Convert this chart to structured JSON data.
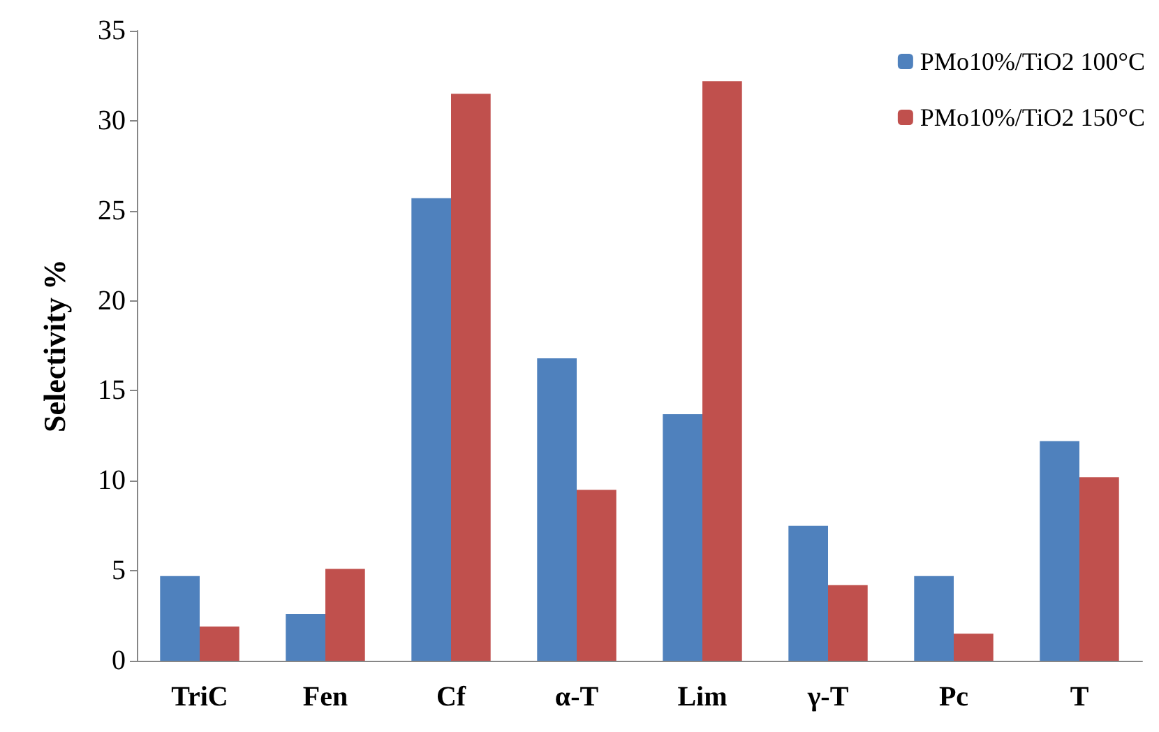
{
  "chart_data": {
    "type": "bar",
    "ylabel": "Selectivity %",
    "categories": [
      "TriC",
      "Fen",
      "Cf",
      "α-T",
      "Lim",
      "γ-T",
      "Pc",
      "T"
    ],
    "series": [
      {
        "name": "PMo10%/TiO2 100°C",
        "color": "#4f81bd",
        "values": [
          4.7,
          2.6,
          25.7,
          16.8,
          13.7,
          7.5,
          4.7,
          12.2
        ]
      },
      {
        "name": "PMo10%/TiO2 150°C",
        "color": "#c0504d",
        "values": [
          1.9,
          5.1,
          31.5,
          9.5,
          32.2,
          4.2,
          1.5,
          10.2
        ]
      }
    ],
    "ylim": [
      0,
      35
    ],
    "yticks": [
      0,
      5,
      10,
      15,
      20,
      25,
      30,
      35
    ],
    "grid": false,
    "legend": "top right"
  }
}
